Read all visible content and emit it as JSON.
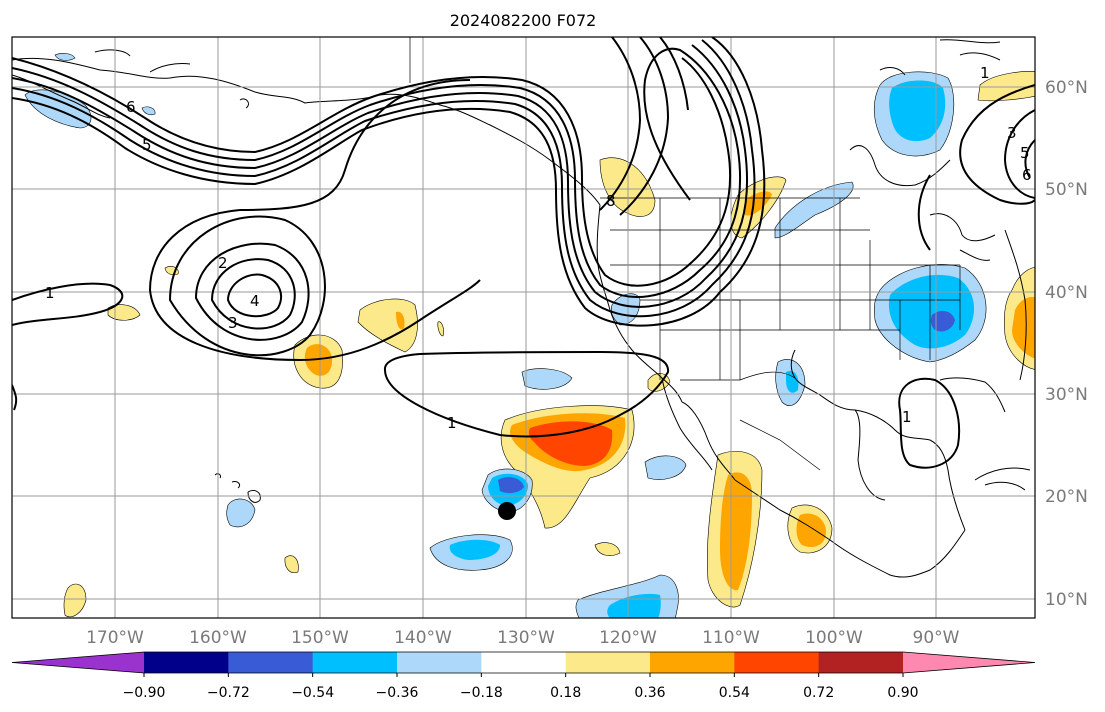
{
  "title": "2024082200 F072",
  "map": {
    "lon_labels": [
      "170°W",
      "160°W",
      "150°W",
      "140°W",
      "130°W",
      "120°W",
      "110°W",
      "100°W",
      "90°W"
    ],
    "lat_labels": [
      "60°N",
      "50°N",
      "40°N",
      "30°N",
      "20°N",
      "10°N"
    ]
  },
  "contour_labels": [
    "6",
    "5",
    "2",
    "4",
    "3",
    "1",
    "1",
    "1",
    "3",
    "5",
    "6",
    "8",
    "1"
  ],
  "colorbar": {
    "colors": [
      "#9a32cd",
      "#00008b",
      "#3a5bd6",
      "#00bfff",
      "#add8f9",
      "#ffffff",
      "#fce98a",
      "#ffa500",
      "#ff4500",
      "#b22222",
      "#ff88b0"
    ],
    "tick_labels": [
      "−0.90",
      "−0.72",
      "−0.54",
      "−0.36",
      "−0.18",
      "0.18",
      "0.36",
      "0.54",
      "0.72",
      "0.90"
    ]
  },
  "marker_color": "#000000"
}
